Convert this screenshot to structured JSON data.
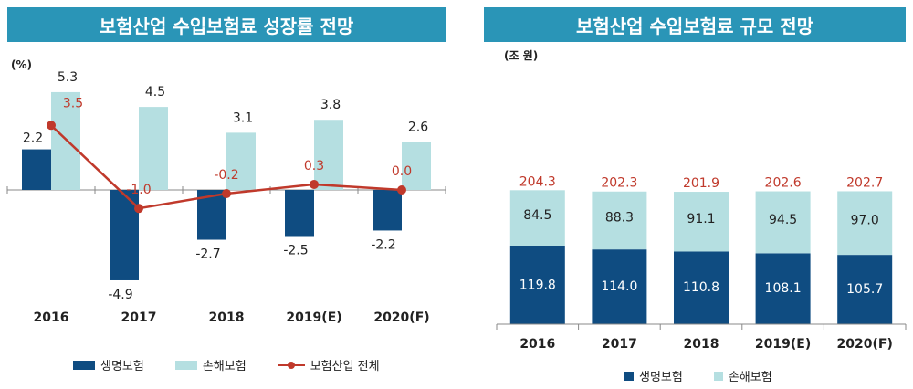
{
  "left": {
    "title": "보험산업 수입보험료 성장률 전망",
    "unit": "(%)",
    "legend": [
      "생명보험",
      "손해보험",
      "보험산업 전체"
    ]
  },
  "right": {
    "title": "보험산업 수입보험료 규모 전망",
    "unit": "(조 원)",
    "legend": [
      "생명보험",
      "손해보험"
    ]
  },
  "colors": {
    "life": "#0f4c81",
    "nonlife": "#b5dfe1",
    "total": "#c0392b",
    "title_bg": "#2a95b7"
  },
  "chart_data": [
    {
      "type": "bar",
      "title": "보험산업 수입보험료 성장률 전망",
      "categories": [
        "2016",
        "2017",
        "2018",
        "2019(E)",
        "2020(F)"
      ],
      "series": [
        {
          "name": "생명보험",
          "values": [
            2.2,
            -4.9,
            -2.7,
            -2.5,
            -2.2
          ]
        },
        {
          "name": "손해보험",
          "values": [
            5.3,
            4.5,
            3.1,
            3.8,
            2.6
          ]
        },
        {
          "name": "보험산업 전체",
          "type": "line",
          "values": [
            3.5,
            -1.0,
            -0.2,
            0.3,
            0.0
          ]
        }
      ],
      "labels": {
        "life": [
          "2.2",
          "-4.9",
          "-2.7",
          "-2.5",
          "-2.2"
        ],
        "nonlife": [
          "5.3",
          "4.5",
          "3.1",
          "3.8",
          "2.6"
        ],
        "total": [
          "3.5",
          "-1.0",
          "-0.2",
          "0.3",
          "0.0"
        ]
      },
      "ylabel": "(%)",
      "legend_position": "bottom"
    },
    {
      "type": "bar",
      "stacked": true,
      "title": "보험산업 수입보험료 규모 전망",
      "categories": [
        "2016",
        "2017",
        "2018",
        "2019(E)",
        "2020(F)"
      ],
      "series": [
        {
          "name": "생명보험",
          "values": [
            119.8,
            114.0,
            110.8,
            108.1,
            105.7
          ]
        },
        {
          "name": "손해보험",
          "values": [
            84.5,
            88.3,
            91.1,
            94.5,
            97.0
          ]
        }
      ],
      "totals": [
        204.3,
        202.3,
        201.9,
        202.6,
        202.7
      ],
      "labels": {
        "life": [
          "119.8",
          "114.0",
          "110.8",
          "108.1",
          "105.7"
        ],
        "nonlife": [
          "84.5",
          "88.3",
          "91.1",
          "94.5",
          "97.0"
        ],
        "totals": [
          "204.3",
          "202.3",
          "201.9",
          "202.6",
          "202.7"
        ]
      },
      "ylabel": "(조 원)",
      "legend_position": "bottom"
    }
  ]
}
